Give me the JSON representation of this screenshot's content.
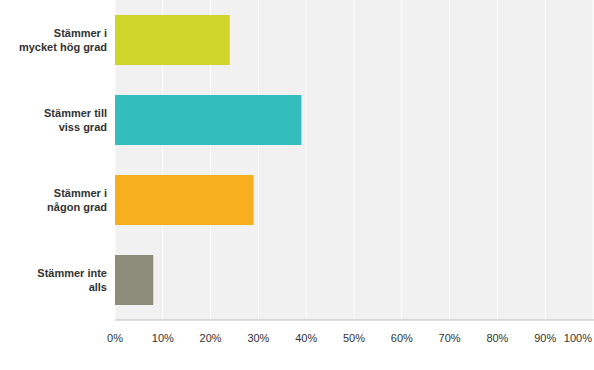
{
  "chart_data": {
    "type": "bar",
    "orientation": "horizontal",
    "categories": [
      "Stämmer i mycket hög grad",
      "Stämmer till viss grad",
      "Stämmer i någon grad",
      "Stämmer inte alls"
    ],
    "values": [
      24,
      39,
      29,
      8
    ],
    "colors": [
      "#d0d52b",
      "#33bdbd",
      "#f7ae1f",
      "#8c8c7b"
    ],
    "xlim": [
      0,
      100
    ],
    "xticks": [
      {
        "value": 0,
        "label": "0%"
      },
      {
        "value": 10,
        "label": "10%"
      },
      {
        "value": 20,
        "label": "20%"
      },
      {
        "value": 30,
        "label": "30%"
      },
      {
        "value": 40,
        "label": "40%"
      },
      {
        "value": 50,
        "label": "50%"
      },
      {
        "value": 60,
        "label": "60%"
      },
      {
        "value": 70,
        "label": "70%"
      },
      {
        "value": 80,
        "label": "80%"
      },
      {
        "value": 90,
        "label": "90%"
      },
      {
        "value": 100,
        "label": "100%"
      }
    ],
    "grid": true
  }
}
